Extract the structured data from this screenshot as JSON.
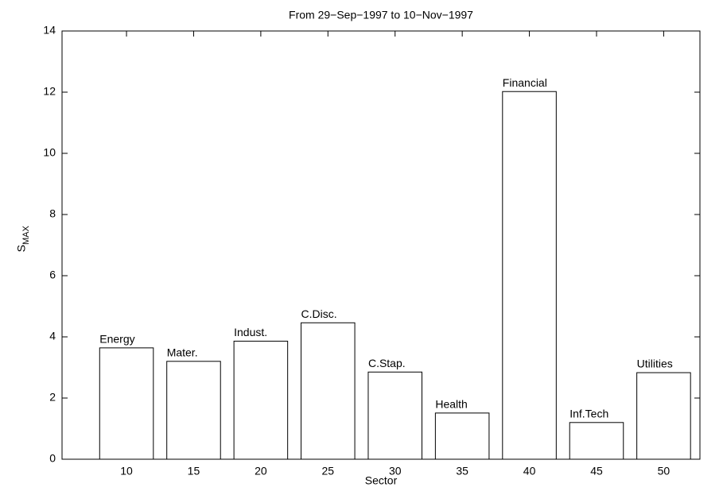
{
  "chart_data": {
    "type": "bar",
    "title": "From 29−Sep−1997 to 10−Nov−1997",
    "xlabel": "Sector",
    "ylabel": "S",
    "ylabel_sub": "MAX",
    "x": [
      10,
      15,
      20,
      25,
      30,
      35,
      40,
      45,
      50
    ],
    "values": [
      3.64,
      3.2,
      3.86,
      4.46,
      2.85,
      1.51,
      12.02,
      1.2,
      2.83
    ],
    "bar_labels": [
      "Energy",
      "Mater.",
      "Indust.",
      "C.Disc.",
      "C.Stap.",
      "Health",
      "Financial",
      "Inf.Tech",
      "Utilities"
    ],
    "color": "#ffffff",
    "edgecolor": "#000000",
    "xlim": [
      5.2,
      52.7
    ],
    "ylim": [
      0,
      14
    ],
    "xticks": [
      10,
      15,
      20,
      25,
      30,
      35,
      40,
      45,
      50
    ],
    "yticks": [
      0,
      2,
      4,
      6,
      8,
      10,
      12,
      14
    ],
    "grid": false
  }
}
